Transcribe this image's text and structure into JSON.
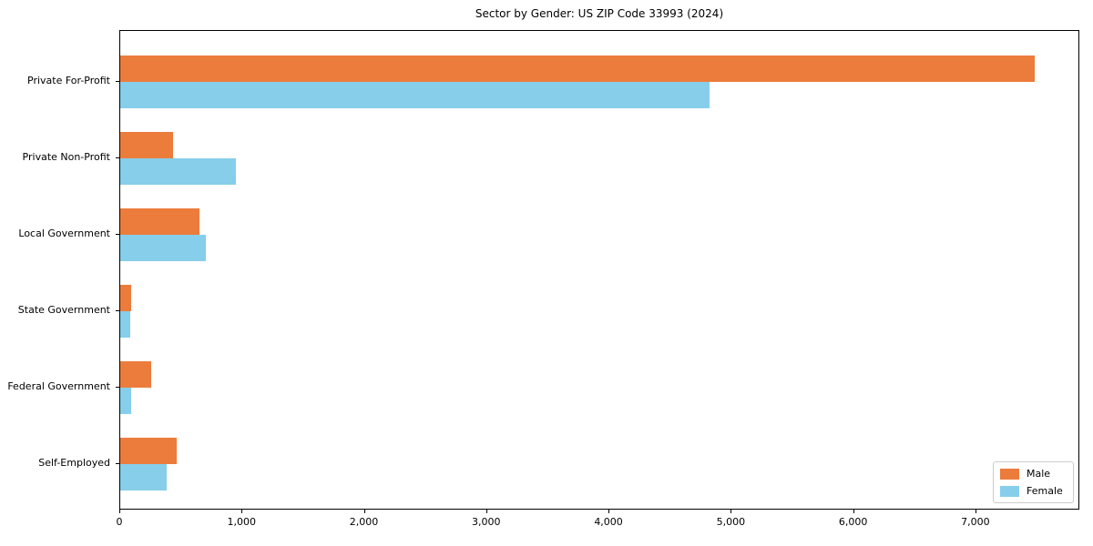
{
  "chart_data": {
    "type": "bar",
    "orientation": "horizontal",
    "title": "Sector by Gender: US ZIP Code 33993 (2024)",
    "categories": [
      "Private For-Profit",
      "Private Non-Profit",
      "Local Government",
      "State Government",
      "Federal Government",
      "Self-Employed"
    ],
    "series": [
      {
        "name": "Male",
        "color": "#EC7C3C",
        "values": [
          7490,
          430,
          650,
          88,
          250,
          460
        ]
      },
      {
        "name": "Female",
        "color": "#87CEEB",
        "values": [
          4830,
          950,
          700,
          82,
          90,
          380
        ]
      }
    ],
    "xlabel": "",
    "ylabel": "",
    "xlim": [
      0,
      7850
    ],
    "x_ticks": [
      0,
      1000,
      2000,
      3000,
      4000,
      5000,
      6000,
      7000
    ],
    "x_tick_labels": [
      "0",
      "1,000",
      "2,000",
      "3,000",
      "4,000",
      "5,000",
      "6,000",
      "7,000"
    ],
    "grid": false,
    "legend_position": "lower right",
    "frame_color": "#000000",
    "background_color": "#ffffff"
  }
}
